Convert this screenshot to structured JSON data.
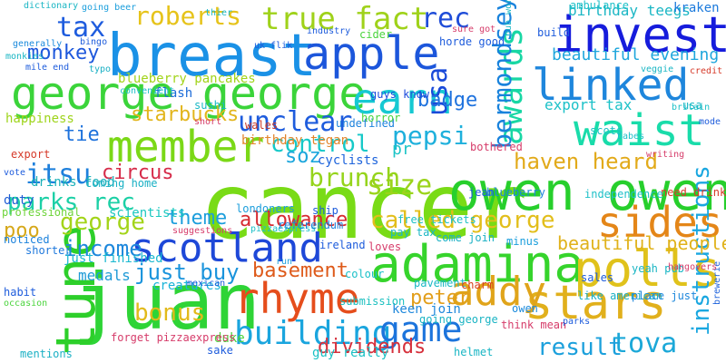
{
  "words": [
    {
      "text": "cancer",
      "color": "#79db16"
    },
    {
      "text": "breast",
      "color": "#1a91e6"
    },
    {
      "text": "juan",
      "color": "#2ed436"
    },
    {
      "text": "adamina",
      "color": "#36d42c"
    },
    {
      "text": "owen owen",
      "color": "#27cf2c"
    },
    {
      "text": "george george",
      "color": "#3bd43a"
    },
    {
      "text": "invest",
      "color": "#161cdc"
    },
    {
      "text": "apple",
      "color": "#1c56db"
    },
    {
      "text": "member",
      "color": "#7bd817"
    },
    {
      "text": "scotland",
      "color": "#1e48d8"
    },
    {
      "text": "rhyme",
      "color": "#e54d1c"
    },
    {
      "text": "building",
      "color": "#1aa5de"
    },
    {
      "text": "game",
      "color": "#1c74dc"
    },
    {
      "text": "polls",
      "color": "#e0c21b"
    },
    {
      "text": "stars",
      "color": "#e1b01c"
    },
    {
      "text": "addy",
      "color": "#e0a41a"
    },
    {
      "text": "tune",
      "color": "#2dcf2a"
    },
    {
      "text": "waist",
      "color": "#19dcaa"
    },
    {
      "text": "awards",
      "color": "#18d7a4"
    },
    {
      "text": "sides",
      "color": "#e48618"
    },
    {
      "text": "earn",
      "color": "#16c9d2"
    },
    {
      "text": "linked",
      "color": "#1e86dc"
    },
    {
      "text": "true fact",
      "color": "#9fd21a"
    },
    {
      "text": "roberts",
      "color": "#e6c31a"
    },
    {
      "text": "tax",
      "color": "#1e5cde"
    },
    {
      "text": "rec",
      "color": "#1e4cd8"
    },
    {
      "text": "usa",
      "color": "#1a4ad9"
    },
    {
      "text": "bermondsey",
      "color": "#1882dc"
    },
    {
      "text": "instructions",
      "color": "#1aa7e0"
    },
    {
      "text": "tova",
      "color": "#1ca8d8"
    },
    {
      "text": "result",
      "color": "#1ca0dc"
    },
    {
      "text": "itsu",
      "color": "#1e80dc"
    },
    {
      "text": "parks rec",
      "color": "#1cd0a6"
    },
    {
      "text": "george",
      "color": "#a3d419"
    },
    {
      "text": "called george",
      "color": "#e2be1b"
    },
    {
      "text": "income",
      "color": "#1e88dc"
    },
    {
      "text": "just buy",
      "color": "#1a94dc"
    },
    {
      "text": "bonus",
      "color": "#e2ba1b"
    },
    {
      "text": "circus",
      "color": "#d62c4a"
    },
    {
      "text": "control",
      "color": "#16c9c8"
    },
    {
      "text": "unclear",
      "color": "#1e5cdd"
    },
    {
      "text": "starbucks",
      "color": "#e2b51c"
    },
    {
      "text": "tie",
      "color": "#1e72dc"
    },
    {
      "text": "monkey",
      "color": "#1e58dc"
    },
    {
      "text": "pepsi",
      "color": "#1eb0dc"
    },
    {
      "text": "size",
      "color": "#9bd41b"
    },
    {
      "text": "haven heard",
      "color": "#e2aa1a"
    },
    {
      "text": "brunch",
      "color": "#95d41b"
    },
    {
      "text": "soz",
      "color": "#1ca6dc"
    },
    {
      "text": "badge",
      "color": "#1e72de"
    },
    {
      "text": "allowance",
      "color": "#d62a30"
    },
    {
      "text": "theme",
      "color": "#1c9edc"
    },
    {
      "text": "basement",
      "color": "#de5a1a"
    },
    {
      "text": "peter",
      "color": "#e29e1a"
    },
    {
      "text": "dividends",
      "color": "#d6303c"
    },
    {
      "text": "beautiful people",
      "color": "#e0b21b"
    },
    {
      "text": "beautiful evening",
      "color": "#1ea6dc"
    },
    {
      "text": "birthday teegs",
      "color": "#1ab6c4"
    },
    {
      "text": "blueberry pancakes",
      "color": "#a2d41b"
    },
    {
      "text": "export tax",
      "color": "#1cc1c8"
    },
    {
      "text": "poo",
      "color": "#d6a81a"
    },
    {
      "text": "pr",
      "color": "#1cc4c6"
    },
    {
      "text": "keen join",
      "color": "#1e88dc"
    },
    {
      "text": "cyclists",
      "color": "#1e64dc"
    },
    {
      "text": "birthday tegan",
      "color": "#e2862c"
    },
    {
      "text": "pizzaexpress",
      "color": "#1ec0c8"
    },
    {
      "text": "duke",
      "color": "#4ad43c"
    },
    {
      "text": "forget pizzaexpress",
      "color": "#d63c6a"
    },
    {
      "text": "guy really",
      "color": "#1ac0c4"
    },
    {
      "text": "medals",
      "color": "#1e9ad6"
    },
    {
      "text": "creatures",
      "color": "#1ab4d8"
    },
    {
      "text": "just finished",
      "color": "#1ab8d0"
    },
    {
      "text": "scientists",
      "color": "#1cc8c0"
    },
    {
      "text": "flash",
      "color": "#1a6ad8"
    },
    {
      "text": "sushi",
      "color": "#1ab8c4"
    },
    {
      "text": "happiness",
      "color": "#9ed41b"
    },
    {
      "text": "undefined",
      "color": "#1c82dc"
    },
    {
      "text": "guys know",
      "color": "#1c4cdc"
    },
    {
      "text": "wales",
      "color": "#c83a2a"
    },
    {
      "text": "horror",
      "color": "#4ad43c"
    },
    {
      "text": "ambulance",
      "color": "#1ec0c8"
    },
    {
      "text": "kraken",
      "color": "#1c7adc"
    },
    {
      "text": "need drink",
      "color": "#d63a2a"
    },
    {
      "text": "independence",
      "color": "#1ec0c8"
    },
    {
      "text": "drinks food",
      "color": "#1ab0b8"
    },
    {
      "text": "duty",
      "color": "#1e5cd4"
    },
    {
      "text": "professional",
      "color": "#6ed43a"
    },
    {
      "text": "free tickets",
      "color": "#1cc0c4"
    },
    {
      "text": "referendum",
      "color": "#1e84dc"
    },
    {
      "text": "londoners",
      "color": "#1c9edc"
    },
    {
      "text": "blueberry",
      "color": "#1e84dc"
    },
    {
      "text": "jean",
      "color": "#1e5cdc"
    },
    {
      "text": "ireland",
      "color": "#1e5cdc"
    },
    {
      "text": "pay tax",
      "color": "#1ab6c4"
    },
    {
      "text": "come join",
      "color": "#1ab0c4"
    },
    {
      "text": "minus",
      "color": "#1a9edc"
    },
    {
      "text": "loves",
      "color": "#d63c6a"
    },
    {
      "text": "colour",
      "color": "#1ac0c8"
    },
    {
      "text": "pavement",
      "color": "#1ab8c4"
    },
    {
      "text": "charm",
      "color": "#d6401a"
    },
    {
      "text": "submission",
      "color": "#1cc0c0"
    },
    {
      "text": "going george",
      "color": "#1ab4c4"
    },
    {
      "text": "helmet",
      "color": "#1ab6c4"
    },
    {
      "text": "owen",
      "color": "#1a8adc"
    },
    {
      "text": "think mean",
      "color": "#d63c6a"
    },
    {
      "text": "like american",
      "color": "#1ab0c4"
    },
    {
      "text": "place just",
      "color": "#1e88dc"
    },
    {
      "text": "brewerie",
      "color": "#1c62dc"
    },
    {
      "text": "sales",
      "color": "#1e5cdc"
    },
    {
      "text": "ship",
      "color": "#1e5cdc"
    },
    {
      "text": "yeah pub",
      "color": "#1ab6c4"
    },
    {
      "text": "hangovers",
      "color": "#d63c6a"
    },
    {
      "text": "usa",
      "color": "#1ab6c4"
    },
    {
      "text": "scots",
      "color": "#1cc0c4"
    },
    {
      "text": "bothered",
      "color": "#d63c6a"
    },
    {
      "text": "shorter",
      "color": "#1e78dc"
    },
    {
      "text": "noticed",
      "color": "#1c82dc"
    },
    {
      "text": "mentions",
      "color": "#1ab0c4"
    },
    {
      "text": "habit",
      "color": "#1e5cdc"
    },
    {
      "text": "occasion",
      "color": "#4ad43c"
    },
    {
      "text": "generally",
      "color": "#1a8adc"
    },
    {
      "text": "mile end",
      "color": "#1e5cdc"
    },
    {
      "text": "dictionary",
      "color": "#1ab6c4"
    },
    {
      "text": "going beer",
      "color": "#1a9edc"
    },
    {
      "text": "monkies",
      "color": "#1ab6c4"
    },
    {
      "text": "bingo",
      "color": "#1e5cdc"
    },
    {
      "text": "typo",
      "color": "#1ab0c4"
    },
    {
      "text": "cider",
      "color": "#4ad43c"
    },
    {
      "text": "horde good",
      "color": "#1e5cdc"
    },
    {
      "text": "industry",
      "color": "#1e5cdc"
    },
    {
      "text": "convenient",
      "color": "#1cc0c8"
    },
    {
      "text": "short",
      "color": "#d63c6a"
    },
    {
      "text": "build",
      "color": "#1e5cdc"
    },
    {
      "text": "sure got",
      "color": "#d63c6a"
    },
    {
      "text": "pub work",
      "color": "#1ab6c4"
    },
    {
      "text": "export",
      "color": "#d63a2a"
    },
    {
      "text": "vote",
      "color": "#1e5cdc"
    },
    {
      "text": "coming home",
      "color": "#1ab0c4"
    },
    {
      "text": "sake",
      "color": "#1e5cdc"
    },
    {
      "text": "run",
      "color": "#1c9edc"
    },
    {
      "text": "credit",
      "color": "#d63a2a"
    },
    {
      "text": "britain",
      "color": "#1cc0c8"
    },
    {
      "text": "mode",
      "color": "#1e5cdc"
    },
    {
      "text": "babes",
      "color": "#1cc0c8"
    },
    {
      "text": "writing",
      "color": "#d63c6a"
    },
    {
      "text": "veggie",
      "color": "#1ab6c4"
    },
    {
      "text": "parks",
      "color": "#1e5cdc"
    },
    {
      "text": "uk flik",
      "color": "#1e5cdc"
    },
    {
      "text": "thier",
      "color": "#1ab6c4"
    },
    {
      "text": "suggestions",
      "color": "#d63c6a"
    },
    {
      "text": "mexican",
      "color": "#1e5cdc"
    }
  ]
}
